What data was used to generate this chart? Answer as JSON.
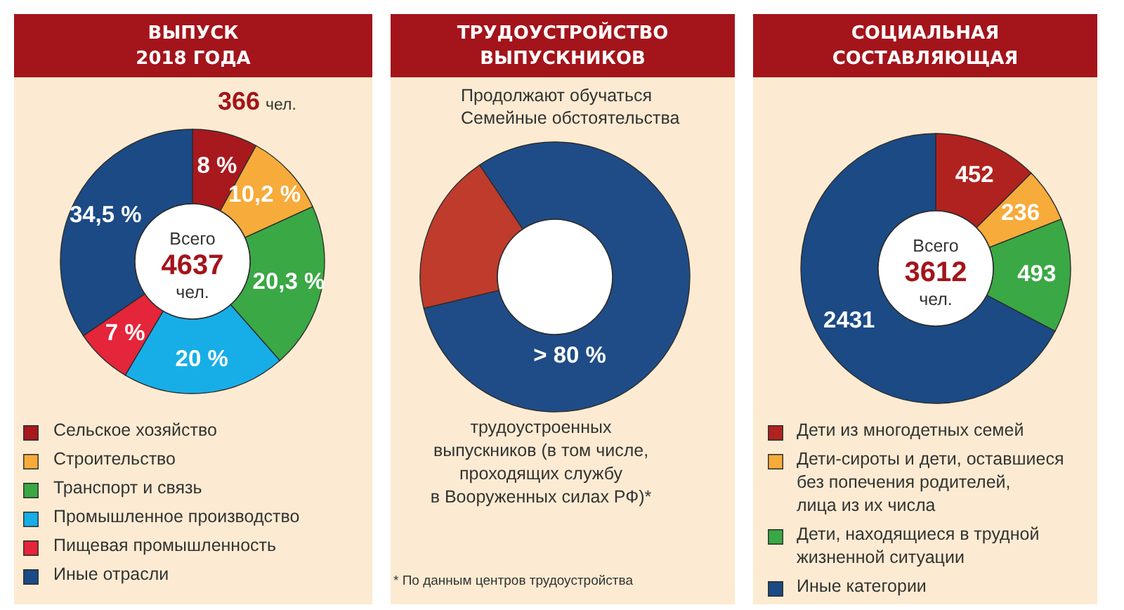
{
  "chart_data": [
    {
      "type": "donut",
      "title": "ВЫПУСК\n2018 ГОДА",
      "categories": [
        "Сельское хозяйство",
        "Строительство",
        "Транспорт и связь",
        "Промышленное производство",
        "Пищевая промышленность",
        "Иные отрасли"
      ],
      "values": [
        8,
        10.2,
        20.3,
        20,
        7,
        34.5
      ],
      "colors": [
        "#a8191e",
        "#f7ab3a",
        "#3aa845",
        "#17aee8",
        "#e4253a",
        "#1b4a85"
      ],
      "value_labels": [
        "8 %",
        "10,2 %",
        "20,3 %",
        "20 %",
        "7 %",
        "34,5 %"
      ],
      "legend": "bottom",
      "annotations": [
        "366 чел.",
        "Всего\n4637\nчел."
      ]
    },
    {
      "type": "donut",
      "title": "ТРУДОУСТРОЙСТВО\nВЫПУСКНИКОВ",
      "categories": [
        "трудоустроенных\nвыпускников (в том числе,\nпроходящих службу\nв Вооруженных силах РФ)*",
        null
      ],
      "values": [
        80.7,
        19.3
      ],
      "colors": [
        "#1f4c86",
        "#bf3b2c"
      ],
      "value_labels": [
        "> 80 %",
        null
      ],
      "annotations": [
        "Продолжают обучаться",
        "Семейные обстоятельства",
        "* По данным центров трудоустройства"
      ]
    },
    {
      "type": "donut",
      "title": "СОЦИАЛЬНАЯ\nСОСТАВЛЯЮЩАЯ",
      "categories": [
        "Дети из многодетных семей",
        "Дети-сироты и дети, оставшиеся\nбез попечения родителей,\nлица из их числа",
        "Дети, находящиеся в трудной\nжизненной ситуации",
        "Иные категории"
      ],
      "values": [
        452,
        236,
        493,
        2431
      ],
      "colors": [
        "#b0221f",
        "#f7ab3a",
        "#3aa845",
        "#1b4a85"
      ],
      "data_labels": true,
      "legend": "bottom",
      "annotations": [
        "Всего\n3612\nчел."
      ]
    }
  ]
}
